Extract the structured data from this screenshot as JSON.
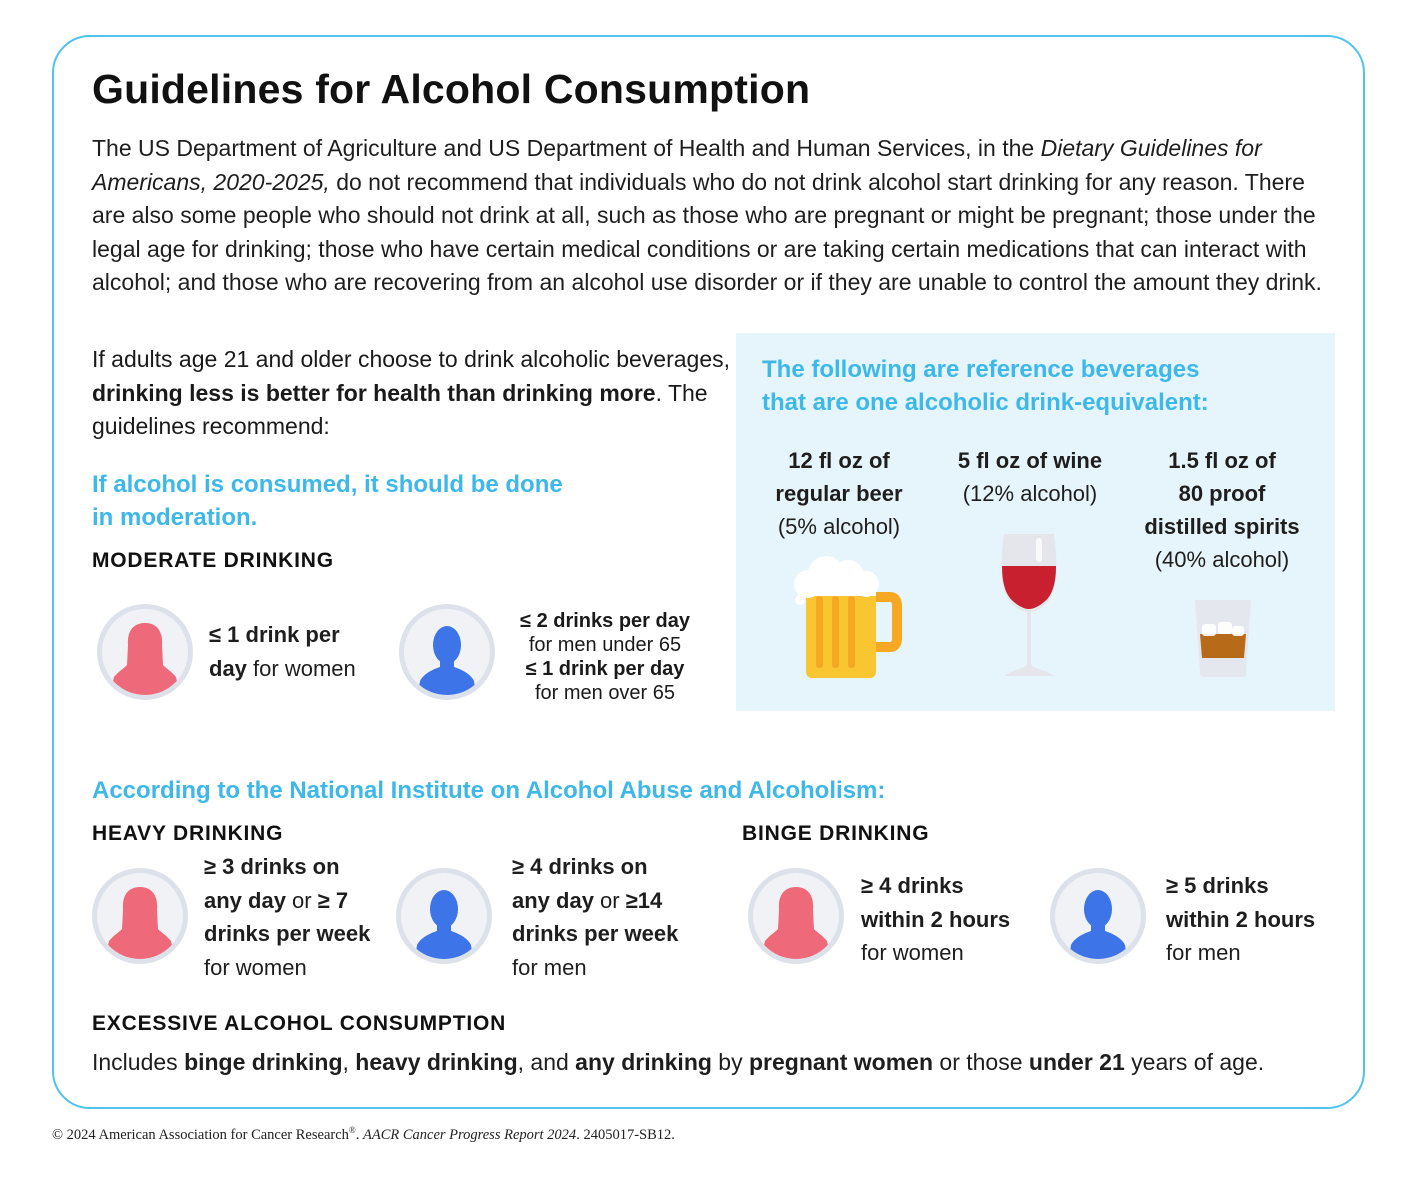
{
  "title": "Guidelines for Alcohol Consumption",
  "intro": {
    "part1": "The US Department of Agriculture and US Department of Health and Human Services, in the ",
    "italic": "Dietary Guidelines for Americans, 2020-2025,",
    "part2": " do not recommend that individuals who do not drink alcohol start drinking for any reason. There are also some people who should not drink at all, such as those who are pregnant or might be pregnant; those under the legal age for drinking; those who have certain medical conditions or are taking certain medications that can interact with alcohol; and those who are recovering from an alcohol use disorder or if they are unable to control the amount they drink."
  },
  "lead": {
    "part1": "If adults age 21 and older choose to drink alcoholic beverages, ",
    "bold": "drinking less is better for health than drinking more",
    "part2": ". The guidelines recommend:"
  },
  "moderation_heading": {
    "line1": "If alcohol is consumed, it should be done",
    "line2": "in moderation."
  },
  "moderate": {
    "heading": "MODERATE DRINKING",
    "women": {
      "bold1": "≤ 1 drink per",
      "bold2": "day",
      "text": " for women"
    },
    "men": {
      "bold1": "≤ 2 drinks per day",
      "text1": "for men under 65",
      "bold2": "≤ 1 drink per day",
      "text2": "for men over 65"
    }
  },
  "reference": {
    "heading1": "The following are reference beverages",
    "heading2": "that are one alcoholic drink-equivalent:",
    "beer": {
      "bold1": "12 fl oz of",
      "bold2": "regular beer",
      "text": "(5% alcohol)"
    },
    "wine": {
      "bold1": "5 fl oz of wine",
      "text": "(12% alcohol)"
    },
    "spirits": {
      "bold1": "1.5 fl oz of",
      "bold2": "80 proof",
      "bold3": "distilled spirits",
      "text": "(40% alcohol)"
    }
  },
  "niaaa_heading": "According to the National Institute on Alcohol Abuse and Alcoholism:",
  "heavy": {
    "heading": "HEAVY DRINKING",
    "women": {
      "l1b": "≥ 3 drinks on",
      "l2b": "any day",
      "l2t": " or ",
      "l2b2": "≥ 7",
      "l3b": "drinks per week",
      "l4": "for women"
    },
    "men": {
      "l1b": "≥ 4 drinks on",
      "l2b": "any day",
      "l2t": " or ",
      "l2b2": "≥14",
      "l3b": "drinks per week",
      "l4": "for men"
    }
  },
  "binge": {
    "heading": "BINGE DRINKING",
    "women": {
      "l1b": "≥ 4 drinks",
      "l2b": "within 2 hours",
      "l3": "for women"
    },
    "men": {
      "l1b": "≥ 5 drinks",
      "l2b": "within 2 hours",
      "l3": "for men"
    }
  },
  "excessive": {
    "heading": "EXCESSIVE ALCOHOL CONSUMPTION",
    "t1": "Includes ",
    "b1": "binge drinking",
    "t2": ", ",
    "b2": "heavy drinking",
    "t3": ", and ",
    "b3": "any drinking",
    "t4": " by ",
    "b4": "pregnant women",
    "t5": " or those ",
    "b5": "under 21",
    "t6": " years of age."
  },
  "footer": {
    "text1": "© 2024 American Association for Cancer Research",
    "reg": "®",
    "text2": ". ",
    "italic": "AACR Cancer Progress Report 2024",
    "text3": ". 2405017-SB12."
  },
  "colors": {
    "accent": "#3db8e8",
    "woman": "#ee6a7b",
    "man": "#3d74e8",
    "border": "#4fc3ec",
    "panel": "#e6f5fb"
  }
}
